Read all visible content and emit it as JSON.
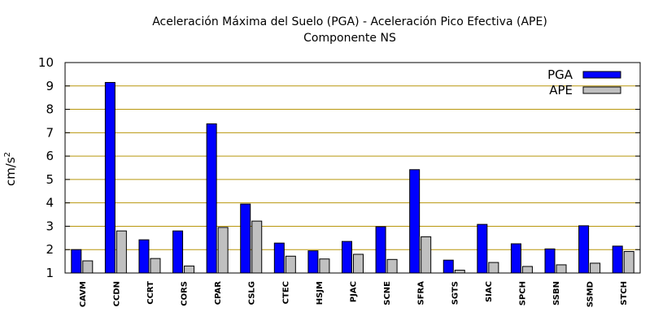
{
  "chart_data": {
    "type": "bar",
    "title": "Aceleración Máxima del Suelo (PGA) -  Aceleración Pico Efectiva (APE)",
    "subtitle": "Componente NS",
    "ylabel": "cm/s",
    "ylabel_sup": "2",
    "xlabel": "",
    "ylim": [
      1,
      10
    ],
    "yticks": [
      1,
      2,
      3,
      4,
      5,
      6,
      7,
      8,
      9,
      10
    ],
    "grid": true,
    "legend_position": "top-right",
    "categories": [
      "CAVM",
      "CCDN",
      "CCRT",
      "CORS",
      "CPAR",
      "CSLG",
      "CTEC",
      "HSJM",
      "PJAC",
      "SCNE",
      "SFRA",
      "SGTS",
      "SIAC",
      "SPCH",
      "SSBN",
      "SSMD",
      "STCH"
    ],
    "series": [
      {
        "name": "PGA",
        "color": "#0000ff",
        "values": [
          2.0,
          9.15,
          2.42,
          2.8,
          7.38,
          3.95,
          2.28,
          1.95,
          2.35,
          2.98,
          5.42,
          1.55,
          3.08,
          2.25,
          2.03,
          3.02,
          2.15
        ]
      },
      {
        "name": "APE",
        "color": "#c0c0c0",
        "values": [
          1.52,
          2.8,
          1.62,
          1.3,
          2.95,
          3.22,
          1.72,
          1.6,
          1.8,
          1.58,
          2.55,
          1.12,
          1.45,
          1.28,
          1.35,
          1.42,
          1.92
        ]
      }
    ]
  },
  "colors": {
    "grid": "#b8960c",
    "axis": "#000000",
    "bar_outline": "#000000"
  }
}
